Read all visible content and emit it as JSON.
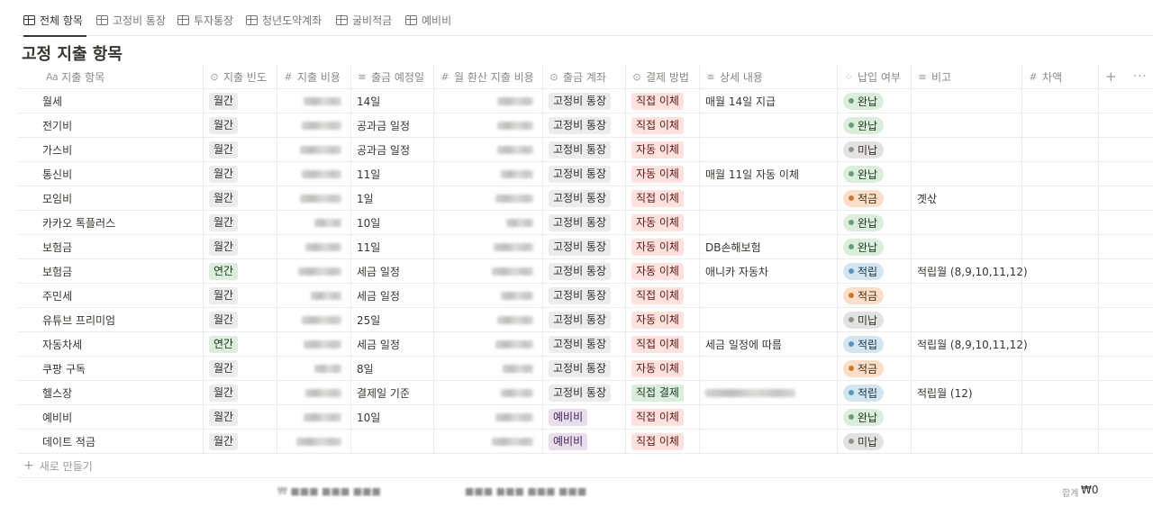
{
  "tabs": [
    {
      "label": "전체 항목",
      "active": true
    },
    {
      "label": "고정비 통장",
      "active": false
    },
    {
      "label": "투자통장",
      "active": false
    },
    {
      "label": "청년도약계좌",
      "active": false
    },
    {
      "label": "굴비적금",
      "active": false
    },
    {
      "label": "예비비",
      "active": false
    }
  ],
  "title": "고정 지출 항목",
  "columns": [
    {
      "label": "지출 항목",
      "icon": "Aa"
    },
    {
      "label": "지출 빈도",
      "icon": "select-icon"
    },
    {
      "label": "지출 비용",
      "icon": "number-icon"
    },
    {
      "label": "출금 예정일",
      "icon": "text-icon"
    },
    {
      "label": "월 환산 지출 비용",
      "icon": "number-icon"
    },
    {
      "label": "출금 계좌",
      "icon": "select-icon"
    },
    {
      "label": "결제 방법",
      "icon": "select-icon"
    },
    {
      "label": "상세 내용",
      "icon": "text-icon"
    },
    {
      "label": "납입 여부",
      "icon": "status-icon"
    },
    {
      "label": "비고",
      "icon": "text-icon"
    },
    {
      "label": "차액",
      "icon": "number-icon"
    }
  ],
  "rows": [
    {
      "name": "월세",
      "freq": "월간",
      "date": "14일",
      "account": "고정비 통장",
      "method": "직접 이체",
      "detail": "매월 14일 지급",
      "status": "완납",
      "note": ""
    },
    {
      "name": "전기비",
      "freq": "월간",
      "date": "공과금 일정",
      "account": "고정비 통장",
      "method": "직접 이체",
      "detail": "",
      "status": "완납",
      "note": ""
    },
    {
      "name": "가스비",
      "freq": "월간",
      "date": "공과금 일정",
      "account": "고정비 통장",
      "method": "자동 이체",
      "detail": "",
      "status": "미납",
      "note": ""
    },
    {
      "name": "통신비",
      "freq": "월간",
      "date": "11일",
      "account": "고정비 통장",
      "method": "자동 이체",
      "detail": "매월 11일 자동 이체",
      "status": "완납",
      "note": ""
    },
    {
      "name": "모임비",
      "freq": "월간",
      "date": "1일",
      "account": "고정비 통장",
      "method": "직접 이체",
      "detail": "",
      "status": "적금",
      "note": "곗삯"
    },
    {
      "name": "카카오 톡플러스",
      "freq": "월간",
      "date": "10일",
      "account": "고정비 통장",
      "method": "자동 이체",
      "detail": "",
      "status": "완납",
      "note": ""
    },
    {
      "name": "보험금",
      "freq": "월간",
      "date": "11일",
      "account": "고정비 통장",
      "method": "자동 이체",
      "detail": "DB손해보험",
      "status": "완납",
      "note": ""
    },
    {
      "name": "보험금",
      "freq": "연간",
      "date": "세금 일정",
      "account": "고정비 통장",
      "method": "자동 이체",
      "detail": "애니카 자동차",
      "status": "적립",
      "note": "적립월 (8,9,10,11,12)"
    },
    {
      "name": "주민세",
      "freq": "월간",
      "date": "세금 일정",
      "account": "고정비 통장",
      "method": "직접 이체",
      "detail": "",
      "status": "적금",
      "note": ""
    },
    {
      "name": "유튜브 프리미엄",
      "freq": "월간",
      "date": "25일",
      "account": "고정비 통장",
      "method": "자동 이체",
      "detail": "",
      "status": "미납",
      "note": ""
    },
    {
      "name": "자동차세",
      "freq": "연간",
      "date": "세금 일정",
      "account": "고정비 통장",
      "method": "직접 이체",
      "detail": "세금 일정에 따름",
      "status": "적립",
      "note": "적립월 (8,9,10,11,12)"
    },
    {
      "name": "쿠팡 구독",
      "freq": "월간",
      "date": "8일",
      "account": "고정비 통장",
      "method": "자동 이체",
      "detail": "",
      "status": "적금",
      "note": ""
    },
    {
      "name": "헬스장",
      "freq": "월간",
      "date": "결제일 기준",
      "account": "고정비 통장",
      "method": "직접 결제",
      "detail": "",
      "status": "적립",
      "note": "적립월 (12)"
    },
    {
      "name": "예비비",
      "freq": "월간",
      "date": "10일",
      "account": "예비비",
      "method": "직접 이체",
      "detail": "",
      "status": "완납",
      "note": ""
    },
    {
      "name": "데이트 적금",
      "freq": "월간",
      "date": "",
      "account": "예비비",
      "method": "직접 이체",
      "detail": "",
      "status": "미납",
      "note": ""
    }
  ],
  "new_row_label": "새로 만들기",
  "footer": {
    "sum_label": "합계",
    "sum_value": "₩0"
  },
  "colors": {
    "text": "#37352f",
    "muted": "#9b9a97",
    "border": "#ededeb"
  }
}
